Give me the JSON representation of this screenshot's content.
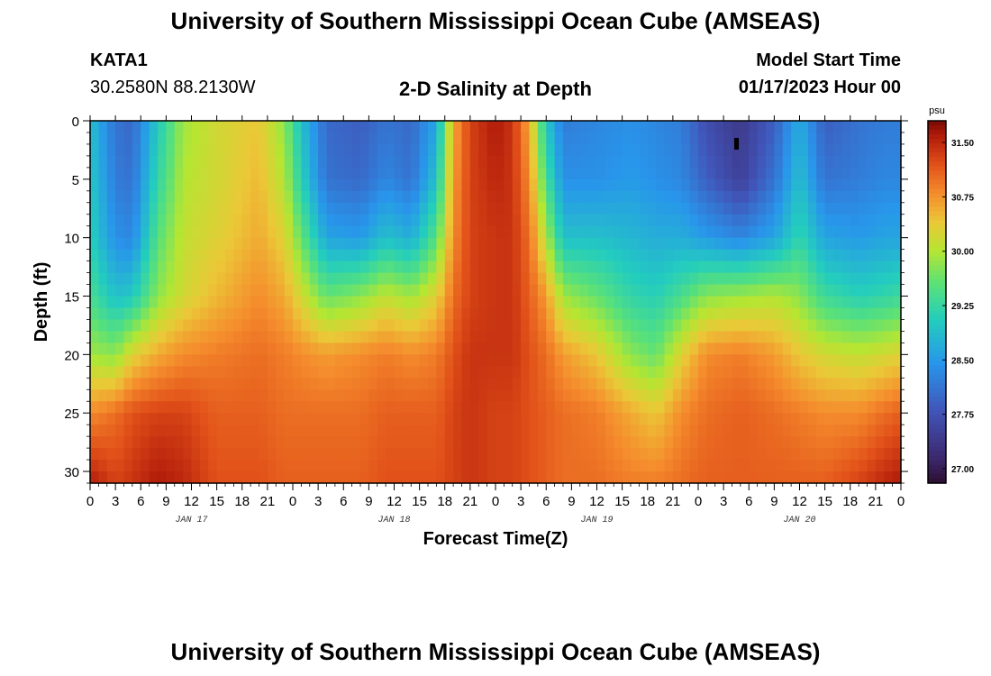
{
  "page": {
    "title": "University of Southern Mississippi Ocean Cube (AMSEAS)",
    "footer_title": "University of Southern Mississippi Ocean Cube (AMSEAS)",
    "station_id": "KATA1",
    "station_coords": "30.2580N  88.2130W",
    "model_start_label": "Model Start Time",
    "model_start_value": "01/17/2023 Hour 00"
  },
  "chart_data": {
    "type": "heatmap",
    "title": "2-D Salinity at Depth",
    "xlabel": "Forecast Time(Z)",
    "ylabel": "Depth (ft)",
    "x_range_hours": [
      0,
      96
    ],
    "y_range_ft": [
      0,
      31
    ],
    "y_ticks": [
      "0",
      "5",
      "10",
      "15",
      "20",
      "25",
      "30"
    ],
    "y_tick_values": [
      0,
      5,
      10,
      15,
      20,
      25,
      30
    ],
    "x_tick_labels": [
      "0",
      "3",
      "6",
      "9",
      "12",
      "15",
      "18",
      "21",
      "0",
      "3",
      "6",
      "9",
      "12",
      "15",
      "18",
      "21",
      "0",
      "3",
      "6",
      "9",
      "12",
      "15",
      "18",
      "21",
      "0",
      "3",
      "6",
      "9",
      "12",
      "15",
      "18",
      "21",
      "0"
    ],
    "day_labels": [
      {
        "text": "JAN 17",
        "hour": 12
      },
      {
        "text": "JAN 18",
        "hour": 36
      },
      {
        "text": "JAN 19",
        "hour": 60
      },
      {
        "text": "JAN 20",
        "hour": 84
      }
    ],
    "colorbar": {
      "unit": "psu",
      "min": 26.8,
      "max": 31.8,
      "tick_labels": [
        "31.50",
        "30.75",
        "30.00",
        "29.25",
        "28.50",
        "27.75",
        "27.00"
      ],
      "tick_values": [
        31.5,
        30.75,
        30.0,
        29.25,
        28.5,
        27.75,
        27.0
      ]
    },
    "profiles_depth_ft": [
      0,
      5,
      10,
      15,
      20,
      25,
      31
    ],
    "profiles": [
      {
        "hour": 0,
        "salinity": [
          28.9,
          29.0,
          29.1,
          29.4,
          29.9,
          30.8,
          31.6
        ]
      },
      {
        "hour": 3,
        "salinity": [
          28.1,
          28.2,
          28.4,
          28.9,
          29.8,
          31.0,
          31.3
        ]
      },
      {
        "hour": 5,
        "salinity": [
          28.0,
          28.1,
          28.3,
          29.0,
          30.3,
          31.2,
          31.4
        ]
      },
      {
        "hour": 8,
        "salinity": [
          29.0,
          29.2,
          29.5,
          29.8,
          30.6,
          31.3,
          31.6
        ]
      },
      {
        "hour": 11,
        "salinity": [
          29.9,
          30.0,
          30.1,
          30.2,
          30.8,
          31.3,
          31.5
        ]
      },
      {
        "hour": 15,
        "salinity": [
          30.2,
          30.2,
          30.3,
          30.5,
          30.9,
          31.1,
          31.2
        ]
      },
      {
        "hour": 20,
        "salinity": [
          30.4,
          30.5,
          30.6,
          30.8,
          31.0,
          31.1,
          31.2
        ]
      },
      {
        "hour": 23,
        "salinity": [
          29.8,
          30.0,
          30.3,
          30.6,
          30.9,
          31.0,
          31.1
        ]
      },
      {
        "hour": 25,
        "salinity": [
          28.9,
          29.1,
          29.6,
          30.2,
          30.8,
          31.0,
          31.1
        ]
      },
      {
        "hour": 28,
        "salinity": [
          28.0,
          28.1,
          28.6,
          29.6,
          30.7,
          31.0,
          31.1
        ]
      },
      {
        "hour": 32,
        "salinity": [
          27.9,
          28.0,
          28.5,
          29.8,
          30.8,
          31.0,
          31.1
        ]
      },
      {
        "hour": 35,
        "salinity": [
          28.1,
          28.3,
          28.9,
          30.1,
          30.9,
          31.1,
          31.2
        ]
      },
      {
        "hour": 38,
        "salinity": [
          28.0,
          28.1,
          28.7,
          29.9,
          30.8,
          31.1,
          31.2
        ]
      },
      {
        "hour": 41,
        "salinity": [
          28.6,
          28.9,
          29.5,
          30.3,
          30.9,
          31.1,
          31.2
        ]
      },
      {
        "hour": 43,
        "salinity": [
          30.6,
          30.7,
          30.8,
          31.0,
          31.2,
          31.3,
          31.3
        ]
      },
      {
        "hour": 45,
        "salinity": [
          31.3,
          31.3,
          31.3,
          31.3,
          31.4,
          31.4,
          31.4
        ]
      },
      {
        "hour": 48,
        "salinity": [
          31.6,
          31.5,
          31.4,
          31.4,
          31.4,
          31.3,
          31.3
        ]
      },
      {
        "hour": 50,
        "salinity": [
          31.4,
          31.4,
          31.4,
          31.4,
          31.4,
          31.3,
          31.3
        ]
      },
      {
        "hour": 52,
        "salinity": [
          30.6,
          30.8,
          31.0,
          31.1,
          31.2,
          31.2,
          31.2
        ]
      },
      {
        "hour": 54,
        "salinity": [
          29.0,
          29.4,
          30.0,
          30.7,
          31.0,
          31.1,
          31.1
        ]
      },
      {
        "hour": 56,
        "salinity": [
          28.2,
          28.4,
          28.9,
          29.9,
          30.7,
          31.0,
          31.0
        ]
      },
      {
        "hour": 60,
        "salinity": [
          28.3,
          28.4,
          28.9,
          29.6,
          30.4,
          30.9,
          31.0
        ]
      },
      {
        "hour": 64,
        "salinity": [
          28.4,
          28.5,
          28.8,
          29.2,
          29.8,
          30.6,
          30.9
        ]
      },
      {
        "hour": 67,
        "salinity": [
          28.3,
          28.4,
          28.7,
          29.1,
          29.6,
          30.4,
          30.9
        ]
      },
      {
        "hour": 70,
        "salinity": [
          28.2,
          28.3,
          28.7,
          29.4,
          30.3,
          30.8,
          31.0
        ]
      },
      {
        "hour": 73,
        "salinity": [
          27.7,
          27.9,
          28.5,
          29.8,
          30.8,
          31.0,
          31.1
        ]
      },
      {
        "hour": 77,
        "salinity": [
          27.4,
          27.5,
          28.3,
          29.9,
          30.9,
          31.1,
          31.1
        ]
      },
      {
        "hour": 81,
        "salinity": [
          27.9,
          28.1,
          28.6,
          30.0,
          30.7,
          31.0,
          31.1
        ]
      },
      {
        "hour": 84,
        "salinity": [
          28.7,
          28.9,
          29.2,
          29.8,
          30.4,
          30.9,
          31.1
        ]
      },
      {
        "hour": 87,
        "salinity": [
          27.9,
          28.1,
          28.6,
          29.3,
          30.2,
          30.8,
          31.1
        ]
      },
      {
        "hour": 91,
        "salinity": [
          28.1,
          28.2,
          28.5,
          29.1,
          30.1,
          30.8,
          31.3
        ]
      },
      {
        "hour": 94,
        "salinity": [
          28.2,
          28.3,
          28.6,
          29.2,
          30.2,
          31.0,
          31.5
        ]
      },
      {
        "hour": 96,
        "salinity": [
          28.2,
          28.3,
          28.6,
          29.3,
          30.3,
          31.1,
          31.6
        ]
      }
    ]
  }
}
